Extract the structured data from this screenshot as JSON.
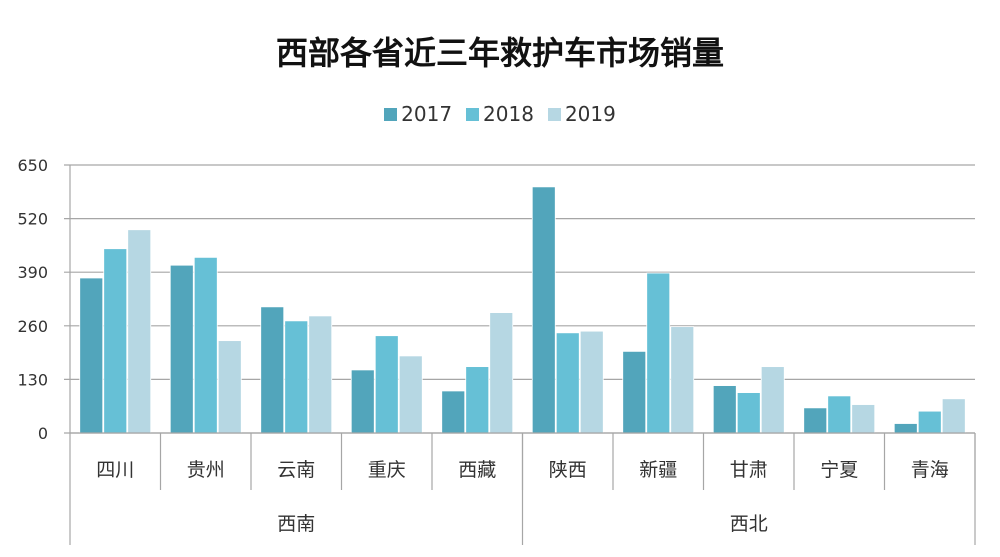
{
  "chart_data": {
    "type": "bar",
    "title": "西部各省近三年救护车市场销量",
    "categories": [
      "四川",
      "贵州",
      "云南",
      "重庆",
      "西藏",
      "陕西",
      "新疆",
      "甘肃",
      "宁夏",
      "青海"
    ],
    "groups": [
      {
        "name": "西南",
        "categories": [
          "四川",
          "贵州",
          "云南",
          "重庆",
          "西藏"
        ]
      },
      {
        "name": "西北",
        "categories": [
          "陕西",
          "新疆",
          "甘肃",
          "宁夏",
          "青海"
        ]
      }
    ],
    "series": [
      {
        "name": "2017",
        "color": "#52a5bb",
        "values": [
          376,
          407,
          306,
          153,
          102,
          597,
          198,
          115,
          61,
          23
        ]
      },
      {
        "name": "2018",
        "color": "#66c0d6",
        "values": [
          447,
          426,
          272,
          236,
          161,
          243,
          388,
          98,
          90,
          53
        ]
      },
      {
        "name": "2019",
        "color": "#b6d7e3",
        "values": [
          493,
          224,
          284,
          187,
          292,
          247,
          258,
          161,
          69,
          83
        ]
      }
    ],
    "yticks": [
      0,
      130,
      260,
      390,
      520,
      650
    ],
    "ylim": [
      0,
      650
    ],
    "grid": true,
    "legend_position": "top"
  }
}
